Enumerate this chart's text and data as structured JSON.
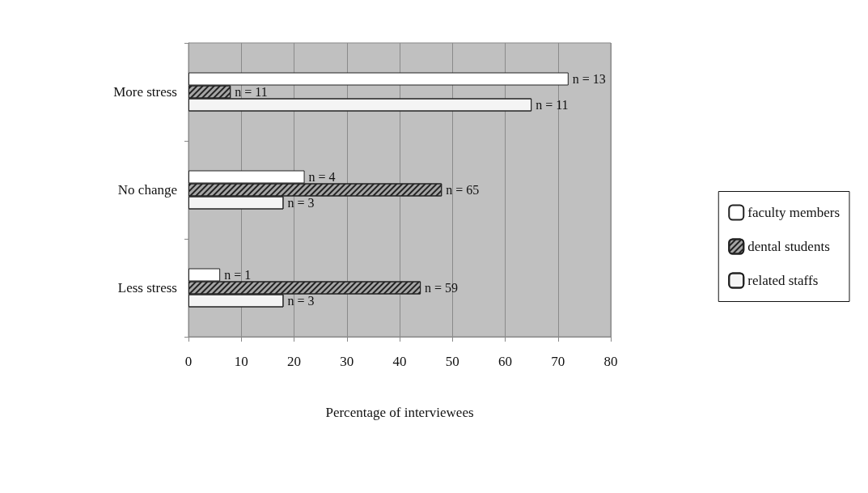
{
  "chart_data": {
    "type": "bar",
    "orientation": "horizontal",
    "xlabel": "Percentage of interviewees",
    "categories": [
      "More stress",
      "No change",
      "Less stress"
    ],
    "series": [
      {
        "name": "faculty members",
        "color": "#ffffff",
        "values": [
          72,
          22,
          6
        ]
      },
      {
        "name": "dental students",
        "color": "#a6a6a6",
        "values": [
          8,
          48,
          44
        ]
      },
      {
        "name": "related staffs",
        "color": "#f4f4f4",
        "values": [
          65,
          18,
          18
        ]
      }
    ],
    "annotations": [
      "n = 13",
      "n = 11",
      "n = 11",
      "n = 4",
      "n = 65",
      "n = 3",
      "n = 1",
      "n = 59",
      "n = 3"
    ],
    "xlim": [
      0,
      80
    ],
    "xticks": [
      0,
      10,
      20,
      30,
      40,
      50,
      60,
      70,
      80
    ],
    "grid": "x",
    "legend": "right"
  }
}
